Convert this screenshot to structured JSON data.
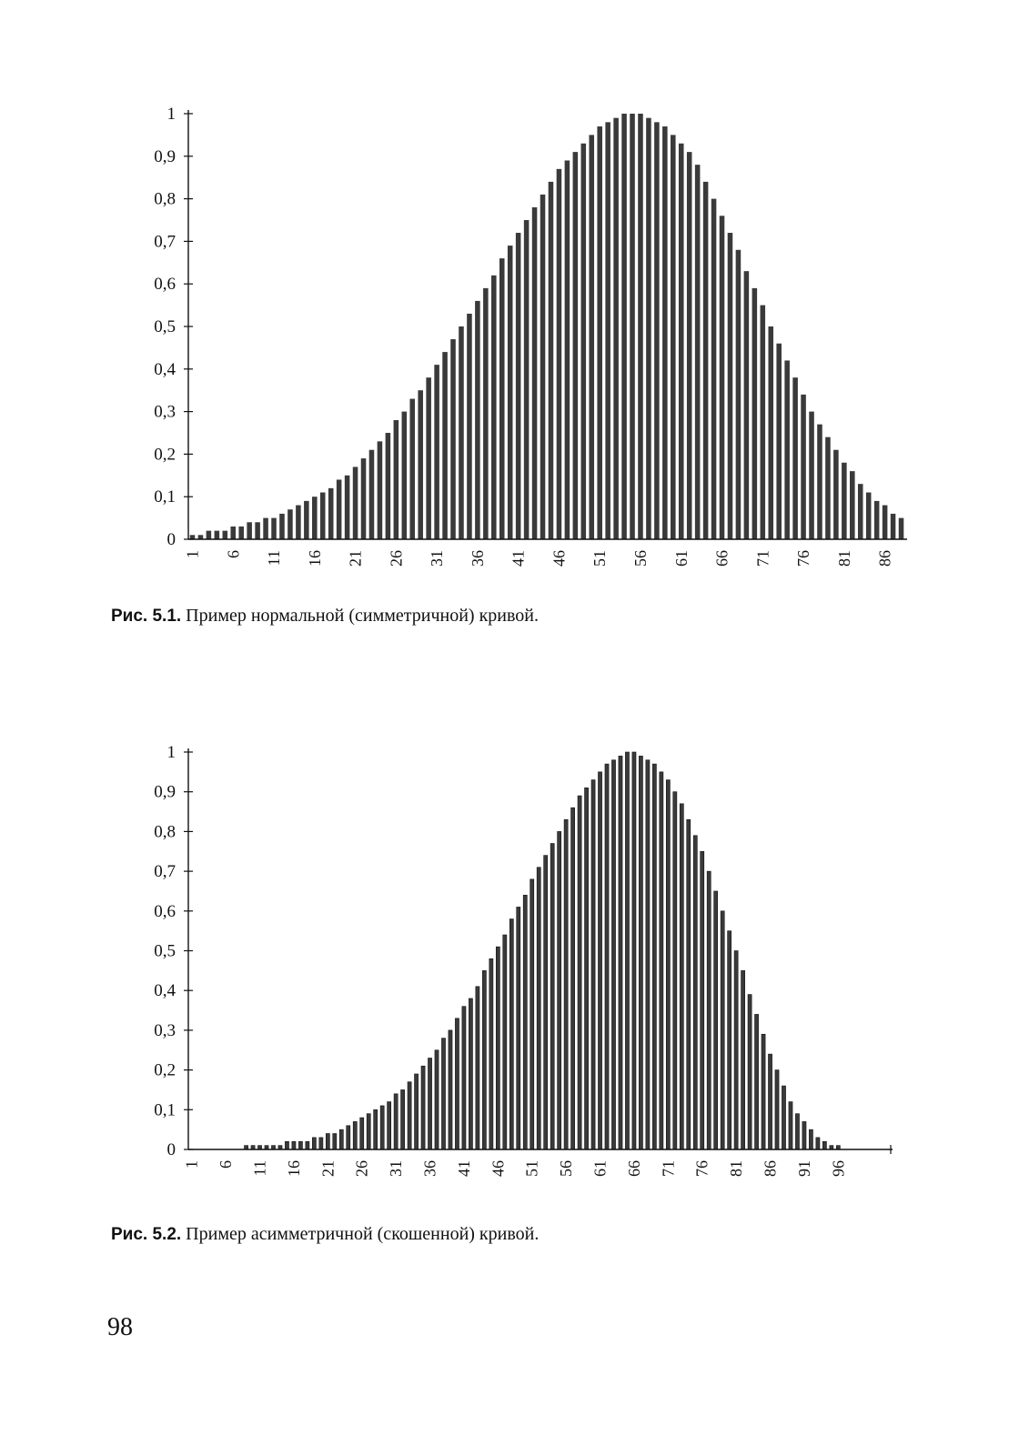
{
  "figures": [
    {
      "caption_label": "Рис. 5.1.",
      "caption_text": "Пример нормальной (симметричной) кривой."
    },
    {
      "caption_label": "Рис. 5.2.",
      "caption_text": "Пример асимметричной (скошенной) кривой."
    }
  ],
  "page_number": "98",
  "bar_color": "#3a3a3a",
  "chart_data": [
    {
      "type": "bar",
      "ylim": [
        0,
        1
      ],
      "y_ticks": [
        "0",
        "0,1",
        "0,2",
        "0,3",
        "0,4",
        "0,5",
        "0,6",
        "0,7",
        "0,8",
        "0,9",
        "1"
      ],
      "x_ticks": [
        "1",
        "6",
        "11",
        "16",
        "21",
        "26",
        "31",
        "36",
        "41",
        "46",
        "51",
        "56",
        "61",
        "66",
        "71",
        "76",
        "81",
        "86"
      ],
      "categories": [
        1,
        2,
        3,
        4,
        5,
        6,
        7,
        8,
        9,
        10,
        11,
        12,
        13,
        14,
        15,
        16,
        17,
        18,
        19,
        20,
        21,
        22,
        23,
        24,
        25,
        26,
        27,
        28,
        29,
        30,
        31,
        32,
        33,
        34,
        35,
        36,
        37,
        38,
        39,
        40,
        41,
        42,
        43,
        44,
        45,
        46,
        47,
        48,
        49,
        50,
        51,
        52,
        53,
        54,
        55,
        56,
        57,
        58,
        59,
        60,
        61,
        62,
        63,
        64,
        65,
        66,
        67,
        68,
        69,
        70,
        71,
        72,
        73,
        74,
        75,
        76,
        77,
        78,
        79,
        80,
        81,
        82,
        83,
        84,
        85,
        86,
        87,
        88
      ],
      "values": [
        0.01,
        0.01,
        0.02,
        0.02,
        0.02,
        0.03,
        0.03,
        0.04,
        0.04,
        0.05,
        0.05,
        0.06,
        0.07,
        0.08,
        0.09,
        0.1,
        0.11,
        0.12,
        0.14,
        0.15,
        0.17,
        0.19,
        0.21,
        0.23,
        0.25,
        0.28,
        0.3,
        0.33,
        0.35,
        0.38,
        0.41,
        0.44,
        0.47,
        0.5,
        0.53,
        0.56,
        0.59,
        0.62,
        0.66,
        0.69,
        0.72,
        0.75,
        0.78,
        0.81,
        0.84,
        0.87,
        0.89,
        0.91,
        0.93,
        0.95,
        0.97,
        0.98,
        0.99,
        1.0,
        1.0,
        1.0,
        0.99,
        0.98,
        0.97,
        0.95,
        0.93,
        0.91,
        0.88,
        0.84,
        0.8,
        0.76,
        0.72,
        0.68,
        0.63,
        0.59,
        0.55,
        0.5,
        0.46,
        0.42,
        0.38,
        0.34,
        0.3,
        0.27,
        0.24,
        0.21,
        0.18,
        0.16,
        0.13,
        0.11,
        0.09,
        0.08,
        0.06,
        0.05
      ]
    },
    {
      "type": "bar",
      "ylim": [
        0,
        1
      ],
      "y_ticks": [
        "0",
        "0,1",
        "0,2",
        "0,3",
        "0,4",
        "0,5",
        "0,6",
        "0,7",
        "0,8",
        "0,9",
        "1"
      ],
      "x_ticks": [
        "1",
        "6",
        "11",
        "16",
        "21",
        "26",
        "31",
        "36",
        "41",
        "46",
        "51",
        "56",
        "61",
        "66",
        "71",
        "76",
        "81",
        "86",
        "91",
        "96"
      ],
      "categories": [
        1,
        2,
        3,
        4,
        5,
        6,
        7,
        8,
        9,
        10,
        11,
        12,
        13,
        14,
        15,
        16,
        17,
        18,
        19,
        20,
        21,
        22,
        23,
        24,
        25,
        26,
        27,
        28,
        29,
        30,
        31,
        32,
        33,
        34,
        35,
        36,
        37,
        38,
        39,
        40,
        41,
        42,
        43,
        44,
        45,
        46,
        47,
        48,
        49,
        50,
        51,
        52,
        53,
        54,
        55,
        56,
        57,
        58,
        59,
        60,
        61,
        62,
        63,
        64,
        65,
        66,
        67,
        68,
        69,
        70,
        71,
        72,
        73,
        74,
        75,
        76,
        77,
        78,
        79,
        80,
        81,
        82,
        83,
        84,
        85,
        86,
        87,
        88,
        89,
        90,
        91,
        92,
        93,
        94,
        95,
        96,
        97,
        98,
        99,
        100
      ],
      "values": [
        0.0,
        0.0,
        0.0,
        0.0,
        0.0,
        0.0,
        0.0,
        0.0,
        0.01,
        0.01,
        0.01,
        0.01,
        0.01,
        0.01,
        0.02,
        0.02,
        0.02,
        0.02,
        0.03,
        0.03,
        0.04,
        0.04,
        0.05,
        0.06,
        0.07,
        0.08,
        0.09,
        0.1,
        0.11,
        0.12,
        0.14,
        0.15,
        0.17,
        0.19,
        0.21,
        0.23,
        0.25,
        0.28,
        0.3,
        0.33,
        0.36,
        0.38,
        0.41,
        0.45,
        0.48,
        0.51,
        0.54,
        0.58,
        0.61,
        0.64,
        0.68,
        0.71,
        0.74,
        0.77,
        0.8,
        0.83,
        0.86,
        0.89,
        0.91,
        0.93,
        0.95,
        0.97,
        0.98,
        0.99,
        1.0,
        1.0,
        0.99,
        0.98,
        0.97,
        0.95,
        0.93,
        0.9,
        0.87,
        0.83,
        0.79,
        0.75,
        0.7,
        0.65,
        0.6,
        0.55,
        0.5,
        0.45,
        0.39,
        0.34,
        0.29,
        0.24,
        0.2,
        0.16,
        0.12,
        0.09,
        0.07,
        0.05,
        0.03,
        0.02,
        0.01,
        0.01,
        0.0,
        0.0,
        0.0,
        0.0
      ]
    }
  ]
}
